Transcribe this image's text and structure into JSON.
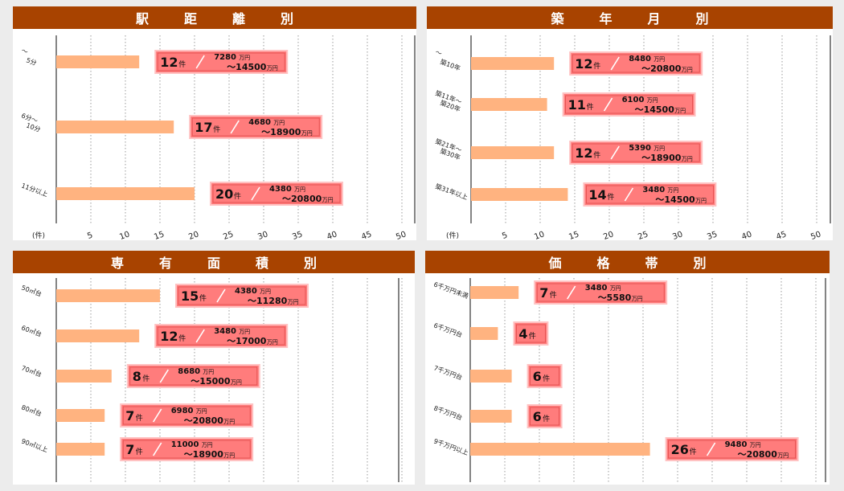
{
  "colors": {
    "header_bg": "#a84300",
    "bar": "#ffb380",
    "label_box_fill": "#ff7c7c",
    "label_box_border": "#ffc2c2",
    "label_box_inner": "#e04a4a"
  },
  "axis_ticks": [
    "5",
    "10",
    "15",
    "20",
    "25",
    "30",
    "35",
    "40",
    "45",
    "50"
  ],
  "unit_label": "(件)",
  "count_unit": "件",
  "price_unit": "万円",
  "panels": [
    {
      "title": "駅　距　離　別",
      "chart_data": {
        "type": "bar",
        "orientation": "horizontal",
        "xlim": [
          0,
          52
        ],
        "categories": [
          [
            "～",
            "5分"
          ],
          [
            "6分～",
            "10分"
          ],
          [
            "11分以上"
          ]
        ],
        "values": [
          12,
          17,
          20
        ],
        "price_low": [
          "7280",
          "4680",
          "4380"
        ],
        "price_high": [
          "～14500",
          "～18900",
          "～20800"
        ]
      }
    },
    {
      "title": "築　年　月　別",
      "chart_data": {
        "type": "bar",
        "orientation": "horizontal",
        "xlim": [
          0,
          52
        ],
        "categories": [
          [
            "～",
            "築10年"
          ],
          [
            "築11年～",
            "築20年"
          ],
          [
            "築21年～",
            "築30年"
          ],
          [
            "築31年以上"
          ]
        ],
        "values": [
          12,
          11,
          12,
          14
        ],
        "price_low": [
          "8480",
          "6100",
          "5390",
          "3480"
        ],
        "price_high": [
          "～20800",
          "～14500",
          "～18900",
          "～14500"
        ]
      }
    },
    {
      "title": "専　有　面　積　別",
      "chart_data": {
        "type": "bar",
        "orientation": "horizontal",
        "xlim": [
          0,
          52
        ],
        "categories": [
          [
            "50㎡台"
          ],
          [
            "60㎡台"
          ],
          [
            "70㎡台"
          ],
          [
            "80㎡台"
          ],
          [
            "90㎡以上"
          ]
        ],
        "values": [
          15,
          12,
          8,
          7,
          7
        ],
        "price_low": [
          "4380",
          "3480",
          "8680",
          "6980",
          "11000"
        ],
        "price_high": [
          "～11280",
          "～17000",
          "～15000",
          "～20800",
          "～18900"
        ]
      }
    },
    {
      "title": "価　格　帯　別",
      "chart_data": {
        "type": "bar",
        "orientation": "horizontal",
        "xlim": [
          0,
          52
        ],
        "categories": [
          [
            "6千万円未満"
          ],
          [
            "6千万円台"
          ],
          [
            "7千万円台"
          ],
          [
            "8千万円台"
          ],
          [
            "9千万円以上"
          ]
        ],
        "values": [
          7,
          4,
          6,
          6,
          26
        ],
        "price_low": [
          "3480",
          "",
          "",
          "",
          "9480"
        ],
        "price_high": [
          "～5580",
          "",
          "",
          "",
          "～20800"
        ]
      }
    }
  ]
}
